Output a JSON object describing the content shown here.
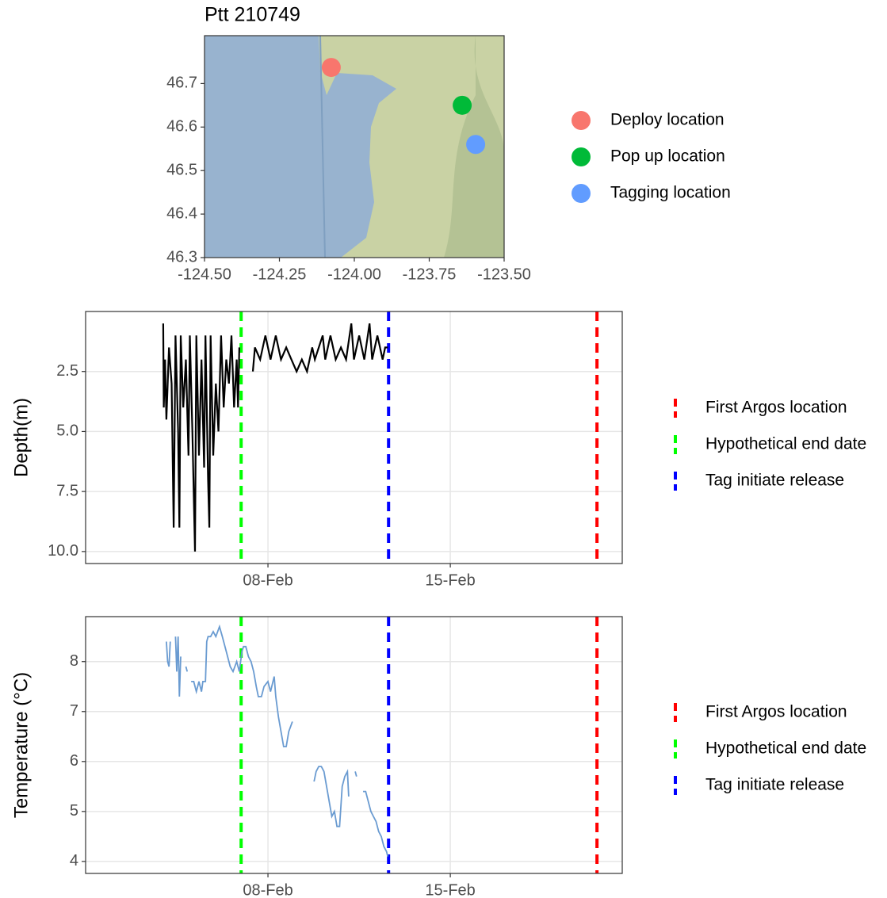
{
  "chart_data": [
    {
      "type": "scatter",
      "title": "Ptt 210749",
      "xlim": [
        -124.5,
        -123.5
      ],
      "xticks": [
        {
          "value": -124.5,
          "label": "-124.50"
        },
        -124.25,
        {
          "value": -124,
          "label": "-124.00"
        },
        -123.75,
        {
          "value": -123.5,
          "label": "-123.50"
        }
      ],
      "ylim": [
        46.3,
        46.81
      ],
      "yticks": [
        46.3,
        46.4,
        46.5,
        46.6,
        46.7
      ],
      "grid": false,
      "series": [
        {
          "name": "Deploy location",
          "color": "#f8766d",
          "x": [
            -124.077
          ],
          "values": [
            46.737
          ]
        },
        {
          "name": "Pop up location",
          "color": "#00ba38",
          "x": [
            -123.64
          ],
          "values": [
            46.65
          ]
        },
        {
          "name": "Tagging location",
          "color": "#619cff",
          "x": [
            -123.595
          ],
          "values": [
            46.56
          ]
        }
      ]
    },
    {
      "type": "line",
      "y_label": "Depth(m)",
      "color": "#000000",
      "y_reversed": true,
      "grid": true,
      "xlim": [
        1,
        21.6
      ],
      "xticks": [
        {
          "value": 8,
          "label": "08-Feb"
        },
        {
          "value": 15,
          "label": "15-Feb"
        }
      ],
      "ylim": [
        0,
        10.5
      ],
      "yticks": [
        2.5,
        {
          "value": 5,
          "label": "5.0"
        },
        7.5,
        {
          "value": 10,
          "label": "10.0"
        }
      ],
      "x": [
        3.98,
        4.0,
        4.05,
        4.1,
        4.2,
        4.3,
        4.38,
        4.45,
        4.55,
        4.6,
        4.65,
        4.75,
        4.85,
        4.95,
        5.0,
        5.1,
        5.2,
        5.25,
        5.35,
        5.45,
        5.55,
        5.6,
        5.7,
        5.75,
        5.8,
        5.9,
        6.0,
        6.1,
        6.2,
        6.3,
        6.4,
        6.5,
        6.6,
        6.7,
        6.8,
        6.85,
        6.9,
        7.1,
        7.42,
        7.5,
        7.7,
        7.9,
        8.1,
        8.3,
        8.5,
        8.7,
        8.9,
        9.1,
        9.3,
        9.5,
        9.7,
        9.8,
        10.1,
        10.2,
        10.4,
        10.6,
        10.8,
        11.0,
        11.2,
        11.3,
        11.5,
        11.7,
        11.9,
        12.0,
        12.2,
        12.4,
        12.5,
        12.6
      ],
      "values": [
        0.5,
        4,
        2,
        4.5,
        1.5,
        3,
        9,
        1,
        5,
        9,
        1,
        4,
        2,
        6,
        1,
        5,
        10,
        1,
        6,
        2,
        6.5,
        1,
        7,
        9,
        1,
        6,
        3,
        5,
        1,
        4,
        2,
        3,
        1,
        4,
        2,
        4,
        1.5,
        null,
        2.5,
        1.5,
        2,
        1,
        2,
        1,
        2,
        1.5,
        2,
        2.5,
        2,
        2.5,
        1.5,
        2,
        1,
        2,
        1,
        2,
        1.5,
        2,
        0.5,
        2,
        1,
        2,
        0.5,
        2,
        1,
        2,
        1.5,
        1.5
      ],
      "reference_lines": [
        {
          "name": "First Argos location",
          "color": "#ff0000",
          "x": 20.63
        },
        {
          "name": "Hypothetical end date",
          "color": "#00ff00",
          "x": 6.97
        },
        {
          "name": "Tag initiate release",
          "color": "#0000ff",
          "x": 12.63
        }
      ]
    },
    {
      "type": "line",
      "y_label": "Temperature (°C)",
      "color": "#6a9bd1",
      "y_reversed": false,
      "grid": true,
      "xlim": [
        1,
        21.6
      ],
      "xticks": [
        {
          "value": 8,
          "label": "08-Feb"
        },
        {
          "value": 15,
          "label": "15-Feb"
        }
      ],
      "ylim": [
        3.76,
        8.9
      ],
      "yticks": [
        4,
        5,
        6,
        7,
        8
      ],
      "x": [
        4.1,
        4.15,
        4.2,
        4.25,
        4.35,
        4.45,
        4.5,
        4.55,
        4.6,
        4.65,
        4.75,
        4.85,
        4.9,
        4.97,
        5.05,
        5.15,
        5.25,
        5.35,
        5.45,
        5.5,
        5.6,
        5.65,
        5.7,
        5.8,
        5.9,
        6.0,
        6.14,
        6.25,
        6.4,
        6.55,
        6.66,
        6.8,
        6.9,
        7.0,
        7.06,
        7.15,
        7.25,
        7.35,
        7.45,
        7.55,
        7.63,
        7.75,
        7.85,
        8.0,
        8.1,
        8.24,
        8.3,
        8.4,
        8.5,
        8.6,
        8.7,
        8.8,
        8.94,
        9.3,
        9.77,
        9.85,
        9.95,
        10.05,
        10.15,
        10.25,
        10.35,
        10.45,
        10.55,
        10.65,
        10.75,
        10.85,
        10.95,
        11.05,
        11.1,
        11.2,
        11.35,
        11.4,
        11.5,
        11.65,
        11.75,
        11.85,
        11.95,
        12.05,
        12.15,
        12.25,
        12.35,
        12.45,
        12.55,
        12.6
      ],
      "values": [
        8.4,
        8.0,
        7.9,
        8.4,
        null,
        8.5,
        7.8,
        8.5,
        7.3,
        8.1,
        null,
        7.9,
        7.8,
        null,
        7.6,
        7.6,
        7.4,
        7.6,
        7.4,
        7.6,
        7.6,
        8.4,
        8.5,
        8.5,
        8.6,
        8.5,
        8.7,
        8.5,
        8.2,
        7.9,
        7.8,
        8.0,
        7.8,
        8.2,
        8.3,
        8.3,
        8.1,
        8.0,
        7.8,
        7.5,
        7.3,
        7.3,
        7.5,
        7.6,
        7.4,
        7.7,
        7.3,
        6.9,
        6.6,
        6.3,
        6.3,
        6.6,
        6.8,
        null,
        5.6,
        5.8,
        5.9,
        5.9,
        5.8,
        5.5,
        5.2,
        4.9,
        5.0,
        4.7,
        4.7,
        5.5,
        5.7,
        5.8,
        5.3,
        null,
        5.8,
        5.7,
        null,
        5.4,
        5.4,
        5.2,
        5.0,
        4.9,
        4.8,
        4.6,
        4.5,
        4.3,
        4.2,
        4.1
      ],
      "reference_lines": [
        {
          "name": "First Argos location",
          "color": "#ff0000",
          "x": 20.63
        },
        {
          "name": "Hypothetical end date",
          "color": "#00ff00",
          "x": 6.97
        },
        {
          "name": "Tag initiate release",
          "color": "#0000ff",
          "x": 12.63
        }
      ]
    }
  ]
}
